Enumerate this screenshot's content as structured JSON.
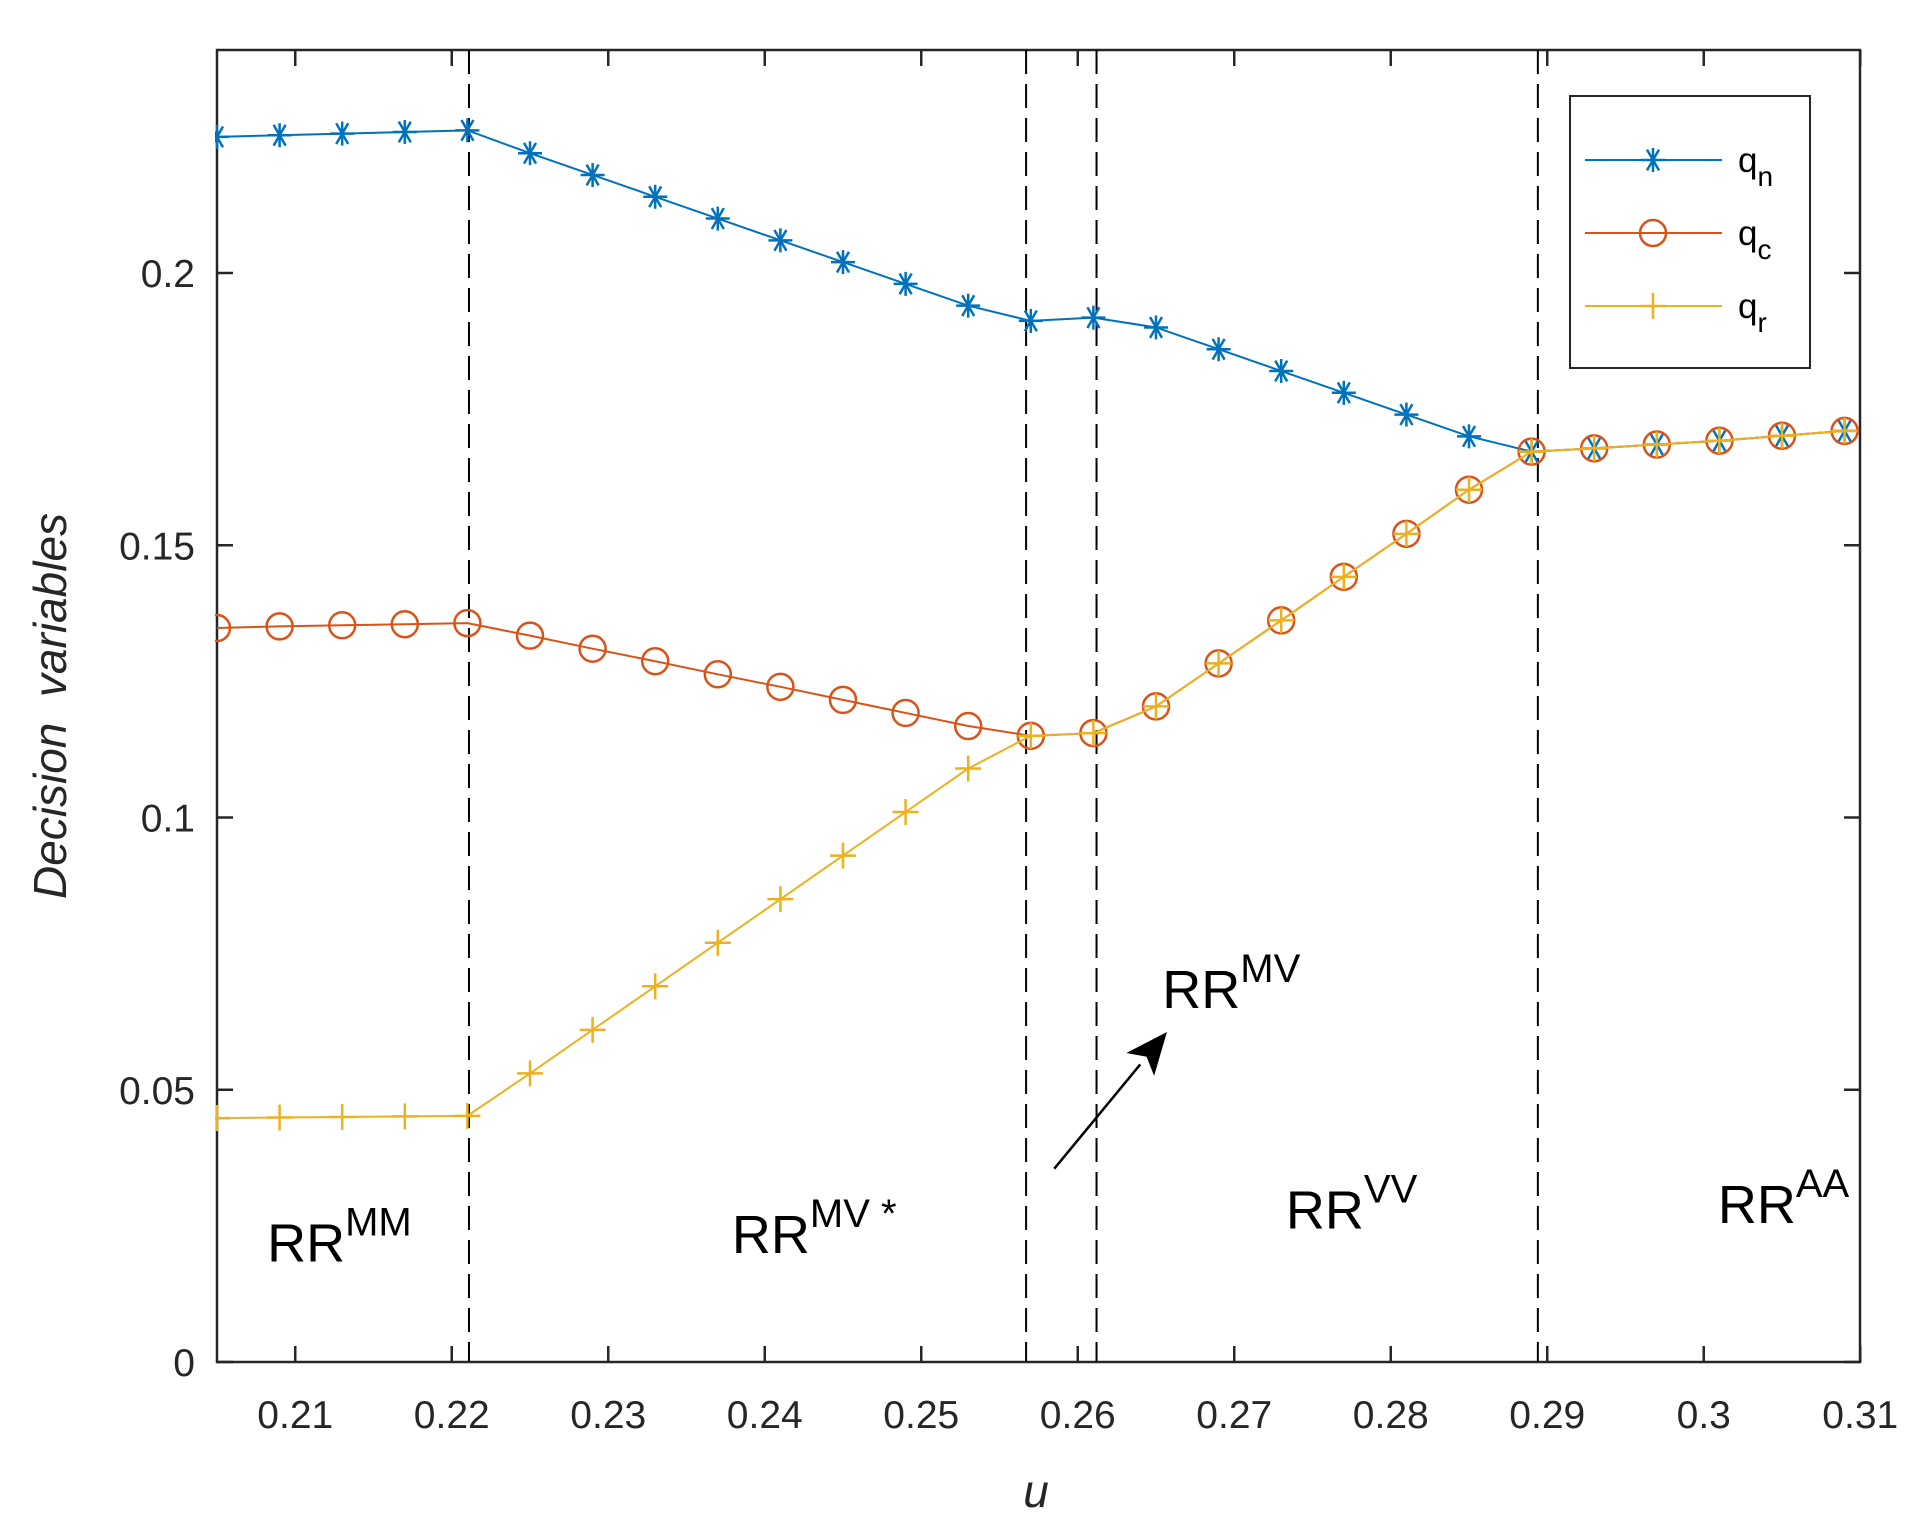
{
  "chart_data": {
    "type": "line",
    "title": "",
    "xlabel": "u",
    "ylabel": "Decision  variables",
    "xlim": [
      0.205,
      0.31
    ],
    "ylim": [
      0,
      0.24
    ],
    "xticks": [
      0.21,
      0.22,
      0.23,
      0.24,
      0.25,
      0.26,
      0.27,
      0.28,
      0.29,
      0.3,
      0.31
    ],
    "xtick_labels": [
      "0.21",
      "0.22",
      "0.23",
      "0.24",
      "0.25",
      "0.26",
      "0.27",
      "0.28",
      "0.29",
      "0.3",
      "0.31"
    ],
    "yticks": [
      0,
      0.05,
      0.1,
      0.15,
      0.2
    ],
    "ytick_labels": [
      "0",
      "0.05",
      "0.1",
      "0.15",
      "0.2"
    ],
    "grid": false,
    "legend_position": "top-right",
    "x": [
      0.205,
      0.209,
      0.213,
      0.217,
      0.221,
      0.225,
      0.229,
      0.233,
      0.237,
      0.241,
      0.245,
      0.249,
      0.253,
      0.257,
      0.261,
      0.265,
      0.269,
      0.273,
      0.277,
      0.281,
      0.285,
      0.289,
      0.293,
      0.297,
      0.301,
      0.305,
      0.309
    ],
    "series": [
      {
        "name": "q_n",
        "label_main": "q",
        "label_sub": "n",
        "color": "#0072BD",
        "marker": "asterisk",
        "values": [
          0.225,
          0.2253,
          0.2256,
          0.2259,
          0.2262,
          0.222,
          0.218,
          0.214,
          0.21,
          0.206,
          0.202,
          0.198,
          0.194,
          0.1912,
          0.1918,
          0.19,
          0.186,
          0.182,
          0.178,
          0.174,
          0.17,
          0.1672,
          0.1678,
          0.1685,
          0.1692,
          0.1701,
          0.171
        ]
      },
      {
        "name": "q_c",
        "label_main": "q",
        "label_sub": "c",
        "color": "#D95319",
        "marker": "circle",
        "values": [
          0.1348,
          0.1351,
          0.1353,
          0.1355,
          0.1357,
          0.1334,
          0.131,
          0.1287,
          0.1263,
          0.124,
          0.1216,
          0.1192,
          0.1168,
          0.115,
          0.1155,
          0.1204,
          0.1283,
          0.1362,
          0.1442,
          0.1521,
          0.1602,
          0.1672,
          0.1678,
          0.1685,
          0.1692,
          0.1701,
          0.171
        ]
      },
      {
        "name": "q_r",
        "label_main": "q",
        "label_sub": "r",
        "color": "#EDB120",
        "marker": "plus",
        "values": [
          0.0448,
          0.0449,
          0.045,
          0.0451,
          0.0452,
          0.053,
          0.061,
          0.069,
          0.077,
          0.085,
          0.093,
          0.101,
          0.109,
          0.115,
          0.1155,
          0.1204,
          0.1283,
          0.1362,
          0.1442,
          0.1521,
          0.1602,
          0.1672,
          0.1678,
          0.1685,
          0.1692,
          0.1701,
          0.171
        ]
      }
    ],
    "boundaries": [
      0.2211,
      0.2567,
      0.2612,
      0.2894
    ],
    "regions": [
      {
        "name": "mm",
        "base": "RR",
        "sup": "MM",
        "x": 0.2082,
        "y": 0.0185
      },
      {
        "name": "mv-star",
        "base": "RR",
        "sup": "MV *",
        "x": 0.2379,
        "y": 0.02
      },
      {
        "name": "vv",
        "base": "RR",
        "sup": "VV",
        "x": 0.2733,
        "y": 0.0245
      },
      {
        "name": "aa",
        "base": "RR",
        "sup": "AA",
        "x": 0.3009,
        "y": 0.0255
      },
      {
        "name": "mv",
        "base": "RR",
        "sup": "MV",
        "x": 0.2654,
        "y": 0.065
      }
    ],
    "annotation_arrow": {
      "from": [
        0.2585,
        0.0355
      ],
      "to": [
        0.2657,
        0.0606
      ]
    }
  }
}
